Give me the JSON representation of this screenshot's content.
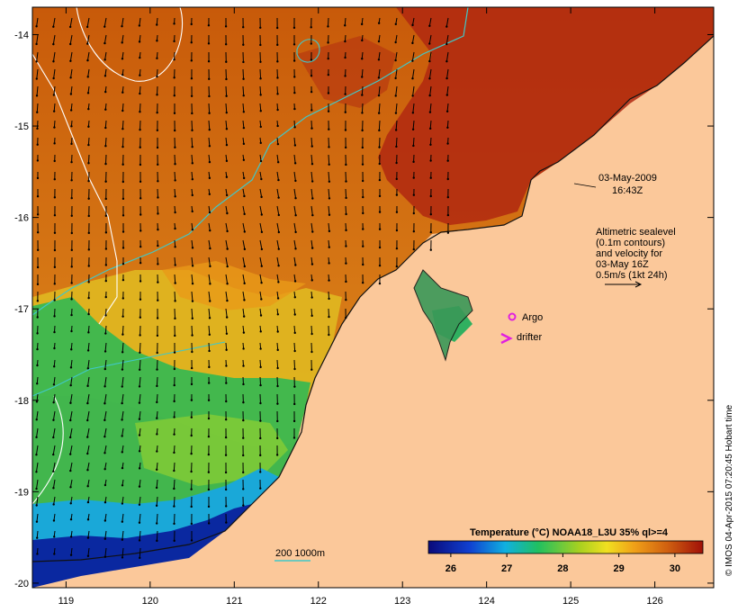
{
  "map": {
    "axes": {
      "lon_ticks": [
        "119",
        "120",
        "121",
        "122",
        "123",
        "124",
        "125",
        "126"
      ],
      "lat_ticks": [
        "-14",
        "-15",
        "-16",
        "-17",
        "-18",
        "-19",
        "-20"
      ],
      "lon_range": [
        118.6,
        126.7
      ],
      "lat_range": [
        -13.7,
        -20.05
      ]
    },
    "date_label": {
      "line1": "03-May-2009",
      "line2": "16:43Z"
    },
    "altimetry_note": {
      "line1": "Altimetric sealevel",
      "line2": "(0.1m contours)",
      "line3": "and velocity for",
      "line4": "03-May 16Z",
      "line5": "0.5m/s (1kt 24h)"
    },
    "legend": {
      "argo_label": "Argo",
      "drifter_label": "drifter",
      "isobath_label": "200 1000m"
    },
    "colorbar": {
      "title": "Temperature (°C) NOAA18_L3U 35% ql>=4",
      "ticks": [
        "26",
        "27",
        "28",
        "29",
        "30"
      ],
      "range": [
        25.6,
        30.5
      ]
    },
    "credit": "© IMOS 04-Apr-2015 07:20:45 Hobart time",
    "colors": {
      "land": "#fbc89a",
      "argo": "#e020e0",
      "drifter": "#e020e0",
      "isobath_200": "#40c8c8",
      "isobath_1000": "#ffffff"
    }
  }
}
